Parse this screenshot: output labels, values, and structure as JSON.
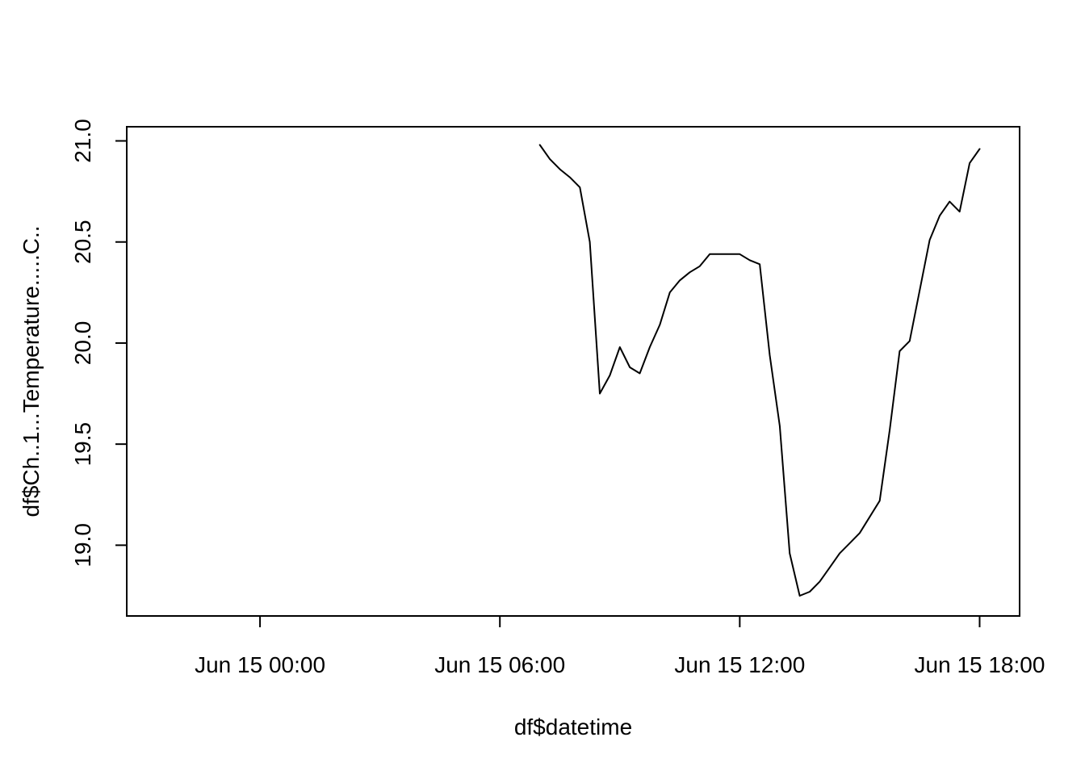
{
  "chart_data": {
    "type": "line",
    "title": "",
    "xlabel": "df$datetime",
    "ylabel": "df$Ch..1...Temperature.....C..",
    "x_axis": {
      "kind": "time",
      "xlim": [
        "2024-06-14T20:40",
        "2024-06-15T19:00"
      ],
      "ticks": [
        {
          "value": "2024-06-15T00:00",
          "label": "Jun 15 00:00"
        },
        {
          "value": "2024-06-15T06:00",
          "label": "Jun 15 06:00"
        },
        {
          "value": "2024-06-15T12:00",
          "label": "Jun 15 12:00"
        },
        {
          "value": "2024-06-15T18:00",
          "label": "Jun 15 18:00"
        }
      ]
    },
    "y_axis": {
      "ylim": [
        18.65,
        21.07
      ],
      "ticks": [
        {
          "value": 19.0,
          "label": "19.0"
        },
        {
          "value": 19.5,
          "label": "19.5"
        },
        {
          "value": 20.0,
          "label": "20.0"
        },
        {
          "value": 20.5,
          "label": "20.5"
        },
        {
          "value": 21.0,
          "label": "21.0"
        }
      ]
    },
    "grid": false,
    "series": [
      {
        "x": [
          "2024-06-15T07:00",
          "2024-06-15T07:15",
          "2024-06-15T07:30",
          "2024-06-15T07:45",
          "2024-06-15T08:00",
          "2024-06-15T08:15",
          "2024-06-15T08:30",
          "2024-06-15T08:45",
          "2024-06-15T09:00",
          "2024-06-15T09:15",
          "2024-06-15T09:30",
          "2024-06-15T09:45",
          "2024-06-15T10:00",
          "2024-06-15T10:15",
          "2024-06-15T10:30",
          "2024-06-15T10:45",
          "2024-06-15T11:00",
          "2024-06-15T11:15",
          "2024-06-15T11:30",
          "2024-06-15T11:45",
          "2024-06-15T12:00",
          "2024-06-15T12:15",
          "2024-06-15T12:30",
          "2024-06-15T12:45",
          "2024-06-15T13:00",
          "2024-06-15T13:15",
          "2024-06-15T13:30",
          "2024-06-15T13:45",
          "2024-06-15T14:00",
          "2024-06-15T14:15",
          "2024-06-15T14:30",
          "2024-06-15T14:45",
          "2024-06-15T15:00",
          "2024-06-15T15:15",
          "2024-06-15T15:30",
          "2024-06-15T15:45",
          "2024-06-15T16:00",
          "2024-06-15T16:15",
          "2024-06-15T16:30",
          "2024-06-15T16:45",
          "2024-06-15T17:00",
          "2024-06-15T17:15",
          "2024-06-15T17:30",
          "2024-06-15T17:45",
          "2024-06-15T18:00"
        ],
        "values": [
          20.98,
          20.91,
          20.86,
          20.82,
          20.77,
          20.5,
          19.75,
          19.84,
          19.98,
          19.88,
          19.85,
          19.98,
          20.09,
          20.25,
          20.31,
          20.35,
          20.38,
          20.44,
          20.44,
          20.44,
          20.44,
          20.41,
          20.39,
          19.94,
          19.59,
          18.96,
          18.75,
          18.77,
          18.82,
          18.89,
          18.96,
          19.01,
          19.06,
          19.14,
          19.22,
          19.57,
          19.96,
          20.01,
          20.26,
          20.51,
          20.63,
          20.7,
          20.65,
          20.89,
          20.96
        ]
      }
    ]
  }
}
